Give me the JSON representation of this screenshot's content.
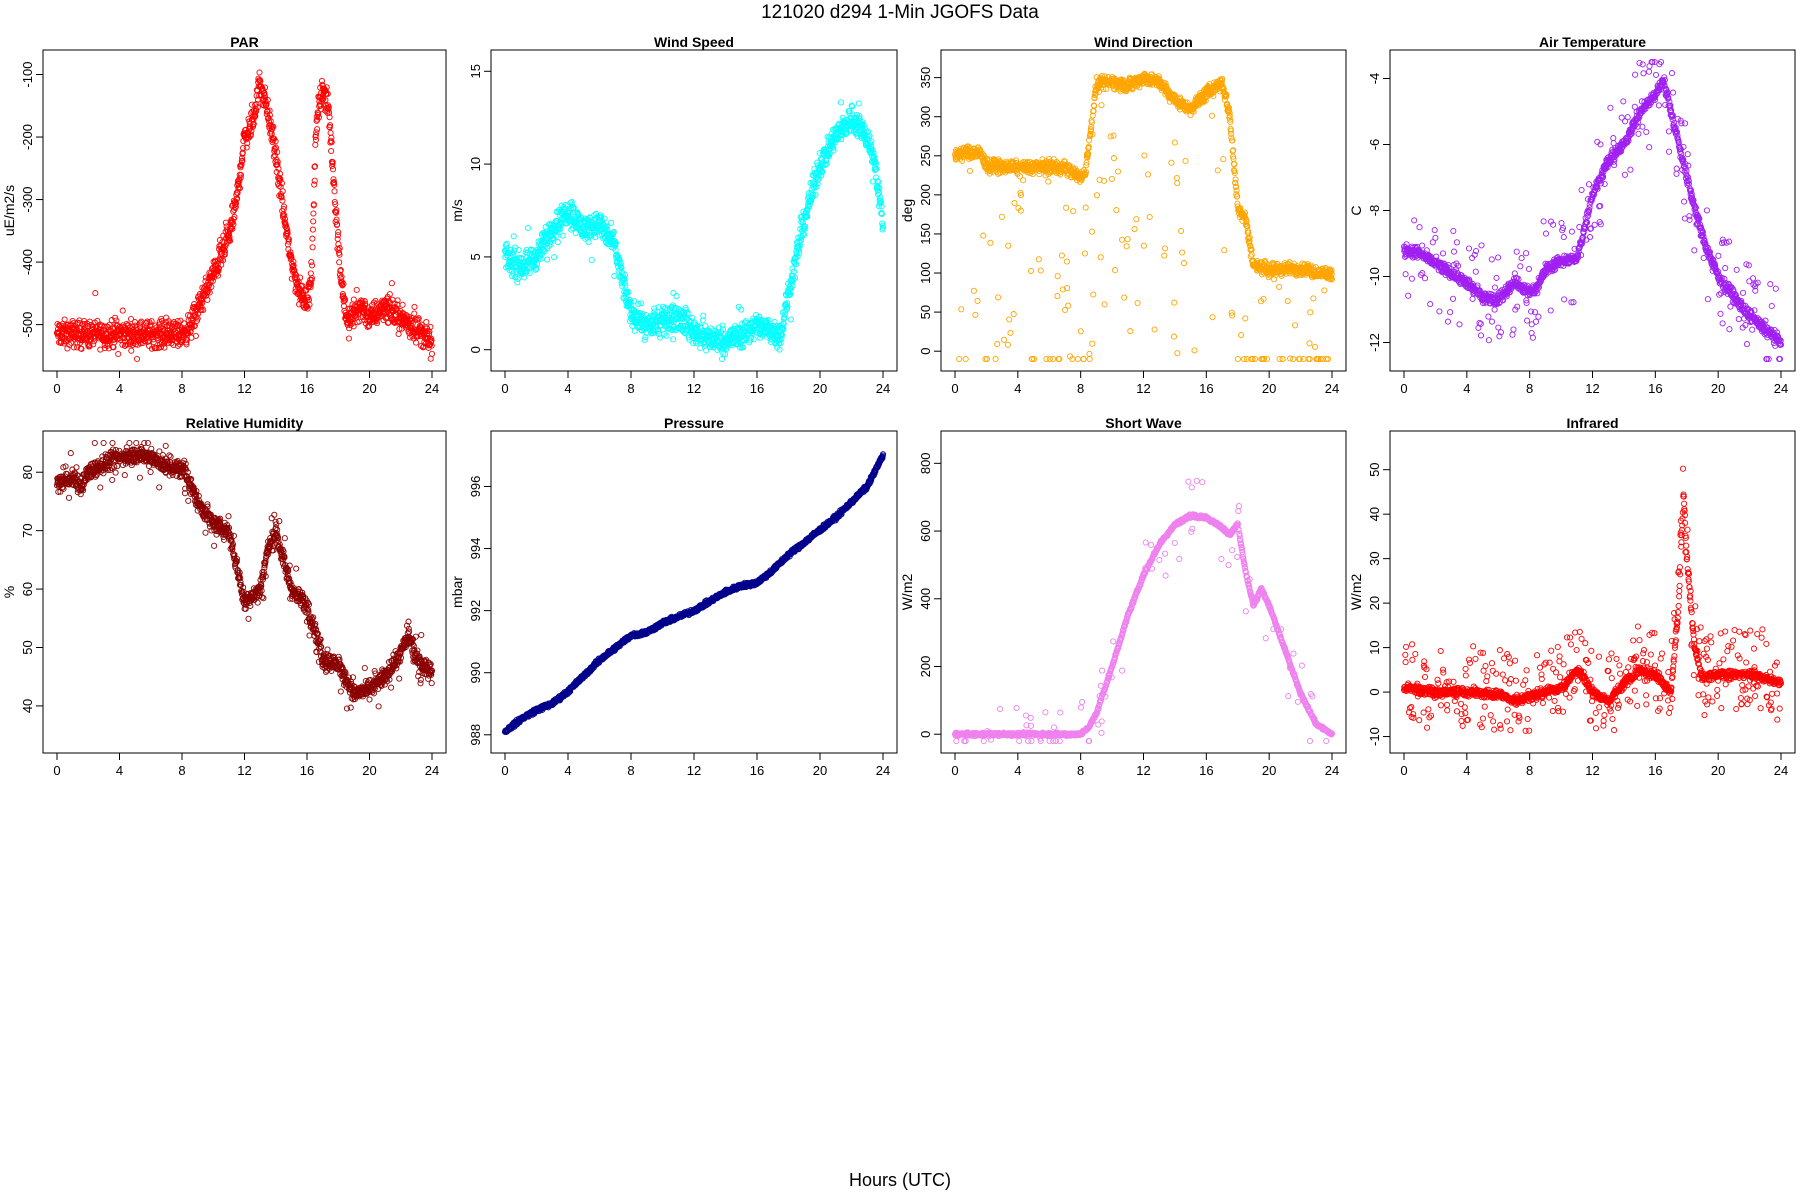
{
  "figure": {
    "title": "121020    d294    1-Min   JGOFS Data",
    "xlabel": "Hours (UTC)"
  },
  "chart_data": [
    {
      "id": "par",
      "type": "scatter",
      "title": "PAR",
      "ylabel": "uE/m2/s",
      "color": "#FF0000",
      "xlim": [
        0,
        24
      ],
      "ylim": [
        -555,
        -80
      ],
      "xticks": [
        0,
        4,
        8,
        12,
        16,
        20,
        24
      ],
      "yticks": [
        -500,
        -400,
        -300,
        -200,
        -100
      ],
      "curve": [
        [
          0,
          -515
        ],
        [
          8,
          -515
        ],
        [
          8.5,
          -505
        ],
        [
          9,
          -475
        ],
        [
          10,
          -420
        ],
        [
          11,
          -360
        ],
        [
          11.5,
          -300
        ],
        [
          12,
          -200
        ],
        [
          12.5,
          -180
        ],
        [
          13,
          -110
        ],
        [
          13.5,
          -160
        ],
        [
          14,
          -230
        ],
        [
          14.5,
          -320
        ],
        [
          15,
          -400
        ],
        [
          15.5,
          -450
        ],
        [
          16,
          -460
        ],
        [
          16.3,
          -420
        ],
        [
          16.6,
          -170
        ],
        [
          17,
          -120
        ],
        [
          17.4,
          -160
        ],
        [
          17.8,
          -300
        ],
        [
          18.2,
          -430
        ],
        [
          18.6,
          -500
        ],
        [
          19,
          -480
        ],
        [
          19.5,
          -470
        ],
        [
          20,
          -490
        ],
        [
          21,
          -470
        ],
        [
          22,
          -490
        ],
        [
          23,
          -505
        ],
        [
          24,
          -530
        ]
      ],
      "noise": 18,
      "spikes": 0.04,
      "spike_range": [
        -40,
        40
      ]
    },
    {
      "id": "wind-speed",
      "type": "scatter",
      "title": "Wind Speed",
      "ylabel": "m/s",
      "color": "#00FFFF",
      "xlim": [
        0,
        24
      ],
      "ylim": [
        -0.5,
        15.5
      ],
      "xticks": [
        0,
        4,
        8,
        12,
        16,
        20,
        24
      ],
      "yticks": [
        0,
        5,
        10,
        15
      ],
      "curve": [
        [
          0,
          5
        ],
        [
          1,
          4.5
        ],
        [
          2,
          5
        ],
        [
          3,
          6.5
        ],
        [
          4,
          7.5
        ],
        [
          5,
          6.5
        ],
        [
          6,
          6.8
        ],
        [
          7,
          5.5
        ],
        [
          7.5,
          3.5
        ],
        [
          8,
          2
        ],
        [
          9,
          1.3
        ],
        [
          10,
          1.5
        ],
        [
          11,
          1.8
        ],
        [
          12,
          1
        ],
        [
          13,
          0.6
        ],
        [
          14,
          0.5
        ],
        [
          15,
          0.8
        ],
        [
          16,
          1.3
        ],
        [
          17,
          1.0
        ],
        [
          17.5,
          0.8
        ],
        [
          18,
          3
        ],
        [
          19,
          7
        ],
        [
          20,
          10
        ],
        [
          21,
          11.5
        ],
        [
          22,
          12.5
        ],
        [
          23,
          11.5
        ],
        [
          23.5,
          10
        ],
        [
          24,
          6.5
        ]
      ],
      "noise": 0.6,
      "spikes": 0.03,
      "spike_range": [
        -1.5,
        1.5
      ]
    },
    {
      "id": "wind-direction",
      "type": "scatter",
      "title": "Wind Direction",
      "ylabel": "deg",
      "color": "#FFA500",
      "xlim": [
        0,
        24
      ],
      "ylim": [
        -10,
        370
      ],
      "xticks": [
        0,
        4,
        8,
        12,
        16,
        20,
        24
      ],
      "yticks": [
        0,
        50,
        100,
        150,
        200,
        250,
        300,
        350
      ],
      "curve": [
        [
          0,
          252
        ],
        [
          1.5,
          255
        ],
        [
          2,
          238
        ],
        [
          4,
          235
        ],
        [
          6,
          236
        ],
        [
          7,
          235
        ],
        [
          7.5,
          228
        ],
        [
          8,
          222
        ],
        [
          8.3,
          230
        ],
        [
          9,
          340
        ],
        [
          10,
          345
        ],
        [
          11,
          340
        ],
        [
          12,
          350
        ],
        [
          13,
          345
        ],
        [
          14,
          320
        ],
        [
          15,
          310
        ],
        [
          16,
          330
        ],
        [
          17,
          345
        ],
        [
          17.5,
          300
        ],
        [
          18,
          185
        ],
        [
          18.5,
          170
        ],
        [
          19,
          110
        ],
        [
          20,
          105
        ],
        [
          22,
          105
        ],
        [
          24,
          98
        ]
      ],
      "noise": 7,
      "spikes": 0.12,
      "spike_range": [
        -330,
        10
      ]
    },
    {
      "id": "air-temperature",
      "type": "scatter",
      "title": "Air Temperature",
      "ylabel": "C",
      "color": "#A020F0",
      "xlim": [
        0,
        24
      ],
      "ylim": [
        -12.5,
        -3.5
      ],
      "xticks": [
        0,
        4,
        8,
        12,
        16,
        20,
        24
      ],
      "yticks": [
        -12,
        -10,
        -8,
        -6,
        -4
      ],
      "curve": [
        [
          0,
          -9.2
        ],
        [
          1,
          -9.3
        ],
        [
          2,
          -9.6
        ],
        [
          3,
          -9.9
        ],
        [
          4,
          -10.2
        ],
        [
          5,
          -10.6
        ],
        [
          6,
          -10.7
        ],
        [
          7,
          -10.2
        ],
        [
          8,
          -10.5
        ],
        [
          8.5,
          -10.3
        ],
        [
          9,
          -9.8
        ],
        [
          10,
          -9.5
        ],
        [
          11,
          -9.5
        ],
        [
          12,
          -7.5
        ],
        [
          13,
          -6.5
        ],
        [
          14,
          -6
        ],
        [
          15,
          -5
        ],
        [
          16,
          -4.5
        ],
        [
          16.5,
          -4
        ],
        [
          17,
          -5
        ],
        [
          18,
          -7
        ],
        [
          19,
          -8.8
        ],
        [
          20,
          -10
        ],
        [
          21,
          -10.6
        ],
        [
          22,
          -11.2
        ],
        [
          23,
          -11.6
        ],
        [
          24,
          -12
        ]
      ],
      "noise": 0.15,
      "spikes": 0.15,
      "spike_range": [
        -1.5,
        1.5
      ]
    },
    {
      "id": "relative-humidity",
      "type": "scatter",
      "title": "Relative Humidity",
      "ylabel": "%",
      "color": "#8B0000",
      "xlim": [
        0,
        24
      ],
      "ylim": [
        34,
        85
      ],
      "xticks": [
        0,
        4,
        8,
        12,
        16,
        20,
        24
      ],
      "yticks": [
        40,
        50,
        60,
        70,
        80
      ],
      "curve": [
        [
          0,
          78
        ],
        [
          1,
          79
        ],
        [
          1.5,
          77.5
        ],
        [
          2,
          80
        ],
        [
          3,
          81.5
        ],
        [
          4,
          82.5
        ],
        [
          5,
          83
        ],
        [
          6,
          82.5
        ],
        [
          7,
          81
        ],
        [
          8,
          80.5
        ],
        [
          8.5,
          78
        ],
        [
          9,
          75
        ],
        [
          10,
          71
        ],
        [
          11,
          70
        ],
        [
          12,
          58
        ],
        [
          13,
          60
        ],
        [
          13.5,
          67
        ],
        [
          14,
          70
        ],
        [
          15,
          60
        ],
        [
          16,
          57
        ],
        [
          16.5,
          53
        ],
        [
          17,
          48
        ],
        [
          18,
          47
        ],
        [
          19,
          42
        ],
        [
          20,
          43
        ],
        [
          21,
          45
        ],
        [
          22,
          49
        ],
        [
          22.5,
          52
        ],
        [
          23,
          48
        ],
        [
          24,
          46
        ]
      ],
      "noise": 1.2,
      "spikes": 0.08,
      "spike_range": [
        -4,
        4
      ]
    },
    {
      "id": "pressure",
      "type": "scatter",
      "title": "Pressure",
      "ylabel": "mbar",
      "color": "#00008B",
      "xlim": [
        0,
        24
      ],
      "ylim": [
        987.8,
        997.4
      ],
      "xticks": [
        0,
        4,
        8,
        12,
        16,
        20,
        24
      ],
      "yticks": [
        988,
        990,
        992,
        994,
        996
      ],
      "curve": [
        [
          0,
          988.1
        ],
        [
          1,
          988.5
        ],
        [
          2,
          988.8
        ],
        [
          3,
          989
        ],
        [
          4,
          989.4
        ],
        [
          5,
          989.9
        ],
        [
          6,
          990.4
        ],
        [
          7,
          990.8
        ],
        [
          8,
          991.2
        ],
        [
          9,
          991.3
        ],
        [
          10,
          991.6
        ],
        [
          11,
          991.8
        ],
        [
          12,
          992
        ],
        [
          13,
          992.3
        ],
        [
          14,
          992.6
        ],
        [
          15,
          992.8
        ],
        [
          16,
          992.9
        ],
        [
          17,
          993.3
        ],
        [
          18,
          993.8
        ],
        [
          19,
          994.2
        ],
        [
          20,
          994.6
        ],
        [
          21,
          995
        ],
        [
          22,
          995.5
        ],
        [
          23,
          996
        ],
        [
          24,
          997
        ]
      ],
      "noise": 0.06,
      "spikes": 0,
      "spike_range": [
        0,
        0
      ]
    },
    {
      "id": "short-wave",
      "type": "scatter",
      "title": "Short Wave",
      "ylabel": "W/m2",
      "color": "#EE82EE",
      "xlim": [
        0,
        24
      ],
      "ylim": [
        -20,
        860
      ],
      "xticks": [
        0,
        4,
        8,
        12,
        16,
        20,
        24
      ],
      "yticks": [
        0,
        200,
        400,
        600,
        800
      ],
      "curve": [
        [
          0,
          0
        ],
        [
          8,
          0
        ],
        [
          8.5,
          20
        ],
        [
          9,
          60
        ],
        [
          10,
          200
        ],
        [
          11,
          350
        ],
        [
          12,
          470
        ],
        [
          13,
          560
        ],
        [
          14,
          620
        ],
        [
          15,
          645
        ],
        [
          16,
          640
        ],
        [
          17,
          610
        ],
        [
          17.5,
          590
        ],
        [
          18,
          620
        ],
        [
          18.5,
          480
        ],
        [
          19,
          380
        ],
        [
          19.5,
          430
        ],
        [
          20,
          380
        ],
        [
          21,
          250
        ],
        [
          22,
          120
        ],
        [
          23,
          30
        ],
        [
          24,
          0
        ]
      ],
      "noise": 4,
      "spikes": 0.05,
      "spike_range": [
        -120,
        120
      ]
    },
    {
      "id": "infrared",
      "type": "scatter",
      "title": "Infrared",
      "ylabel": "W/m2",
      "color": "#FF0000",
      "xlim": [
        0,
        24
      ],
      "ylim": [
        -11,
        56
      ],
      "xticks": [
        0,
        4,
        8,
        12,
        16,
        20,
        24
      ],
      "yticks": [
        -10,
        0,
        10,
        20,
        30,
        40,
        50
      ],
      "curve": [
        [
          0,
          1
        ],
        [
          2,
          0
        ],
        [
          4,
          0
        ],
        [
          6,
          -0.5
        ],
        [
          7,
          -2
        ],
        [
          8,
          -1
        ],
        [
          9,
          0
        ],
        [
          10,
          1
        ],
        [
          11,
          5
        ],
        [
          11.3,
          4
        ],
        [
          12,
          0
        ],
        [
          13,
          -2
        ],
        [
          14,
          2
        ],
        [
          15,
          5
        ],
        [
          16,
          4
        ],
        [
          17,
          0
        ],
        [
          17.5,
          20
        ],
        [
          17.8,
          45
        ],
        [
          18,
          30
        ],
        [
          18.5,
          10
        ],
        [
          19,
          3
        ],
        [
          20,
          4
        ],
        [
          22,
          4
        ],
        [
          24,
          2
        ]
      ],
      "noise": 0.8,
      "spikes": 0.25,
      "spike_range": [
        -8,
        10
      ]
    }
  ]
}
